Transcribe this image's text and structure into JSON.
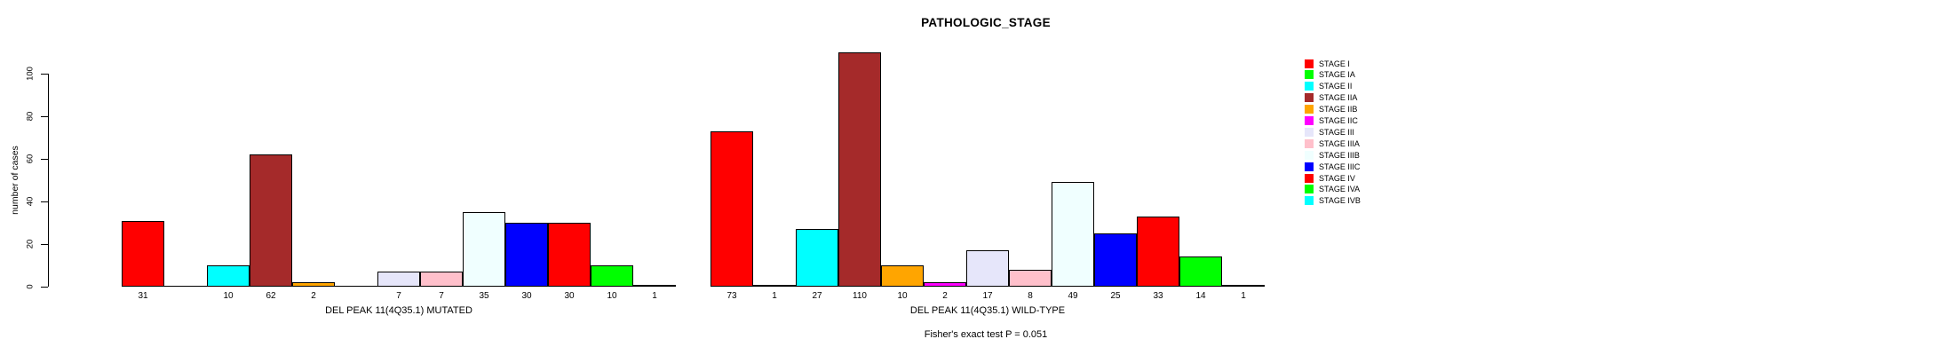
{
  "chart_data": {
    "type": "bar",
    "title": "PATHOLOGIC_STAGE",
    "ylabel": "number of cases",
    "ylim": [
      0,
      100
    ],
    "yticks": [
      0,
      20,
      40,
      60,
      80,
      100
    ],
    "grid": false,
    "legend_position": "right",
    "categories": [
      "STAGE I",
      "STAGE IA",
      "STAGE II",
      "STAGE IIA",
      "STAGE IIB",
      "STAGE IIC",
      "STAGE III",
      "STAGE IIIA",
      "STAGE IIIB",
      "STAGE IIIC",
      "STAGE IV",
      "STAGE IVA",
      "STAGE IVB"
    ],
    "category_colors": [
      "#FF0000",
      "#00FF00",
      "#00FFFF",
      "#A52A2A",
      "#FFA500",
      "#FF00FF",
      "#E6E6FA",
      "#FFC0CB",
      "#F0FFFF",
      "#0000FF",
      "#FF0000",
      "#00FF00",
      "#00FFFF"
    ],
    "series": [
      {
        "name": "DEL PEAK 11(4Q35.1) MUTATED",
        "values": [
          31,
          0,
          10,
          62,
          2,
          0,
          7,
          7,
          35,
          30,
          30,
          10,
          1
        ]
      },
      {
        "name": "DEL PEAK 11(4Q35.1) WILD-TYPE",
        "values": [
          73,
          1,
          27,
          110,
          10,
          2,
          17,
          8,
          49,
          25,
          33,
          14,
          1
        ]
      }
    ],
    "caption": "Fisher's exact test P = 0.051"
  }
}
